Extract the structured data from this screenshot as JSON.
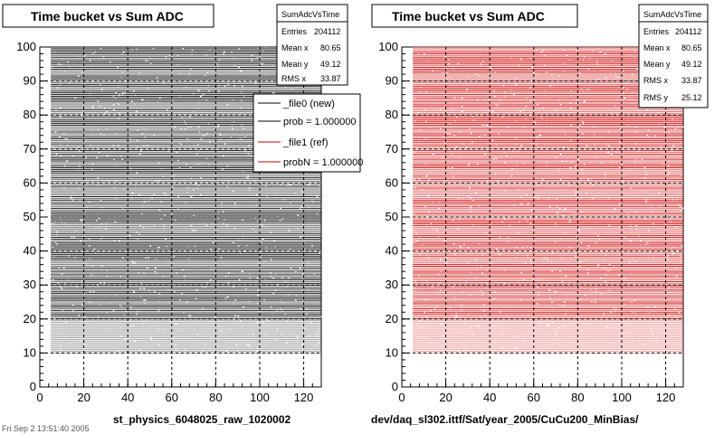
{
  "colors": {
    "ref": "#cc0000",
    "new": "#000000"
  },
  "corner_stamp": "Fri Sep 2 13:51:40 2005",
  "chart_data": [
    {
      "type": "scatter",
      "title": "Time bucket vs Sum ADC",
      "xlabel": "st_physics_6048025_raw_1020002",
      "ylabel": "",
      "xlim": [
        0,
        128
      ],
      "ylim": [
        0,
        100
      ],
      "xticks": [
        0,
        20,
        40,
        60,
        80,
        100,
        120
      ],
      "yticks": [
        0,
        10,
        20,
        30,
        40,
        50,
        60,
        70,
        80,
        90,
        100
      ],
      "grid": true,
      "color": "#000000",
      "stats": {
        "name": "SumAdcVsTime",
        "rows": [
          {
            "label": "Entries",
            "value": "204112"
          },
          {
            "label": "Mean x",
            "value": "80.65"
          },
          {
            "label": "Mean y",
            "value": "49.12"
          },
          {
            "label": "RMS x",
            "value": "33.87"
          }
        ]
      },
      "legend": {
        "entries": [
          "_file0 (new)",
          "prob = 1.000000",
          "_file1 (ref)",
          "probN = 1.000000"
        ],
        "colors": [
          "#000000",
          "#000000",
          "#cc0000",
          "#cc0000"
        ]
      },
      "data_summary": {
        "x_range": [
          5,
          128
        ],
        "y_range": [
          10,
          100
        ],
        "pattern": "horizontal bands dense across x, sparser near bottom"
      }
    },
    {
      "type": "scatter",
      "title": "Time bucket vs Sum ADC",
      "xlabel": "dev/daq_sl302.ittf/Sat/year_2005/CuCu200_MinBias/",
      "ylabel": "",
      "xlim": [
        0,
        128
      ],
      "ylim": [
        0,
        100
      ],
      "xticks": [
        0,
        20,
        40,
        60,
        80,
        100,
        120
      ],
      "yticks": [
        0,
        10,
        20,
        30,
        40,
        50,
        60,
        70,
        80,
        90,
        100
      ],
      "grid": true,
      "color": "#cc0000",
      "stats": {
        "name": "SumAdcVsTime",
        "rows": [
          {
            "label": "Entries",
            "value": "204112"
          },
          {
            "label": "Mean x",
            "value": "80.65"
          },
          {
            "label": "Mean y",
            "value": "49.12"
          },
          {
            "label": "RMS x",
            "value": "33.87"
          },
          {
            "label": "RMS y",
            "value": "25.12"
          }
        ]
      },
      "data_summary": {
        "x_range": [
          5,
          128
        ],
        "y_range": [
          10,
          100
        ],
        "pattern": "horizontal bands dense across x, sparser near bottom"
      }
    }
  ]
}
